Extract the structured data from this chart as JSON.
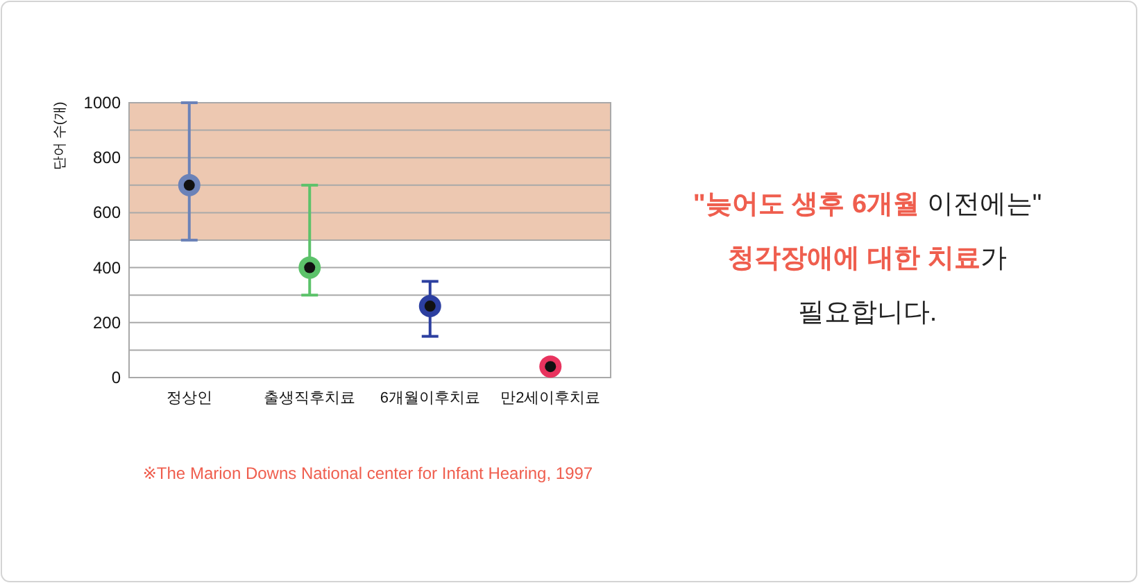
{
  "chart_data": {
    "type": "scatter",
    "ylabel": "단어 수(개)",
    "categories": [
      "정상인",
      "출생직후치료",
      "6개월이후치료",
      "만2세이후치료"
    ],
    "values": [
      700,
      400,
      260,
      40
    ],
    "errors": [
      [
        500,
        1000
      ],
      [
        300,
        700
      ],
      [
        150,
        350
      ],
      null
    ],
    "colors": [
      "#6b82b8",
      "#5cc26a",
      "#2c3fa0",
      "#e8335e"
    ],
    "marker": "circle",
    "ylim": [
      0,
      1000
    ],
    "yticks": [
      0,
      {
        "value": 100,
        "label": null
      },
      200,
      {
        "value": 300,
        "label": null
      },
      400,
      {
        "value": 500,
        "label": null
      },
      600,
      {
        "value": 700,
        "label": null
      },
      800,
      {
        "value": 900,
        "label": null
      },
      1000
    ],
    "grid": "y",
    "bands": [
      {
        "axis": "y",
        "from": 500,
        "to": 1000,
        "color": "#edc8b1"
      }
    ],
    "annotations": [
      "※The Marion Downs National center for Infant Hearing, 1997",
      "\"늦어도 생후 6개월",
      " 이전에는\"",
      "청각장애에 대한 치료",
      "가",
      "필요합니다."
    ]
  }
}
